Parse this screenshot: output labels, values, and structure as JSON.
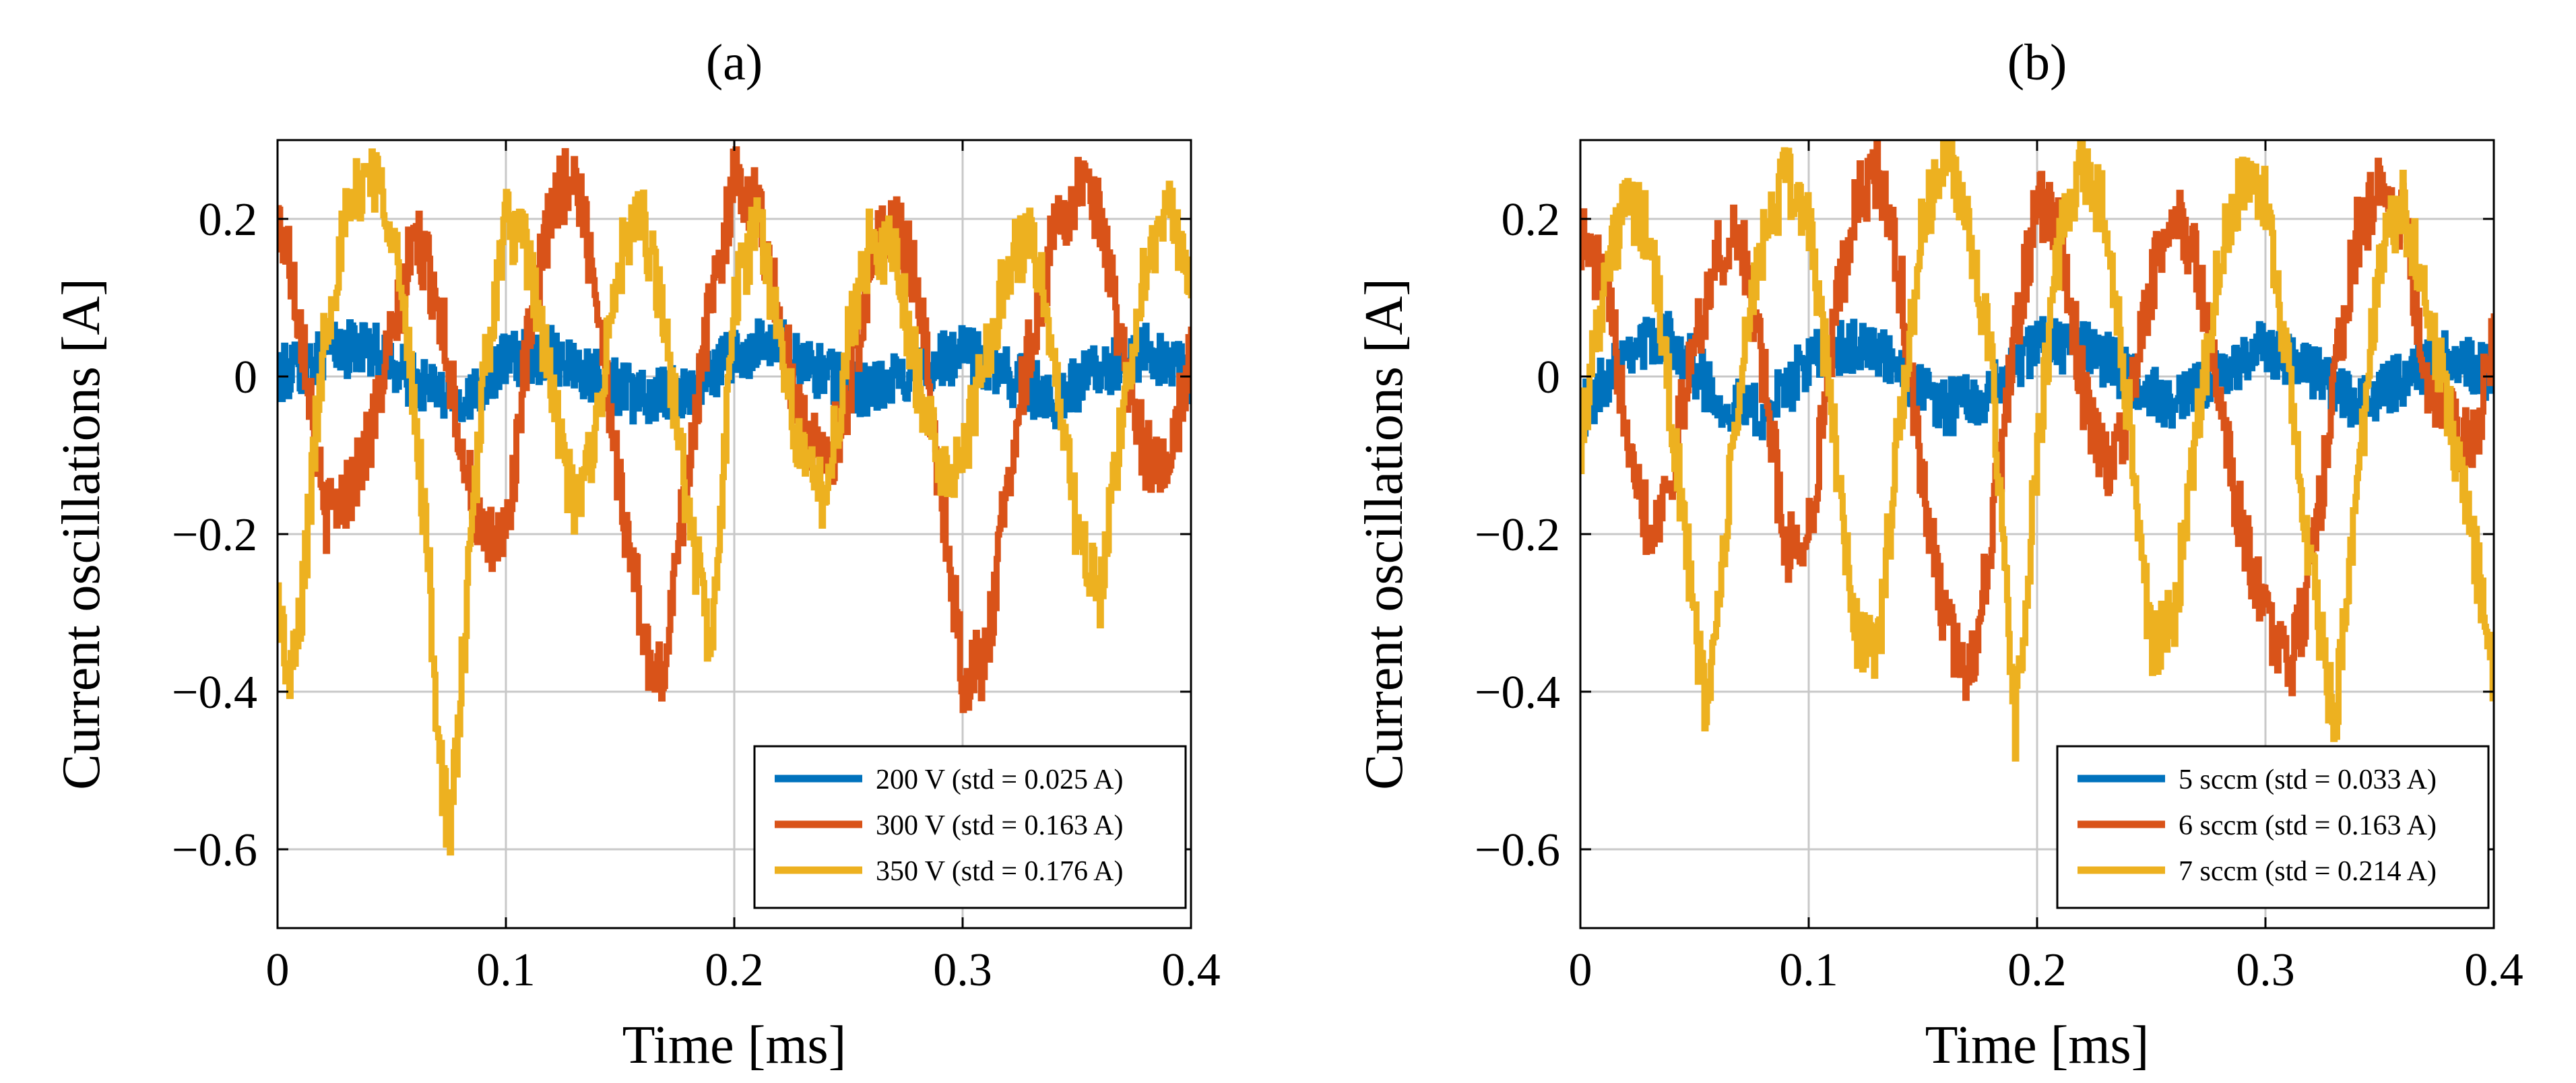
{
  "chart_data": [
    {
      "type": "line",
      "title": "(a)",
      "xlabel": "Time [ms]",
      "ylabel": "Current oscillations [A]",
      "xlim": [
        0,
        0.4
      ],
      "ylim": [
        -0.7,
        0.3
      ],
      "xticks": [
        0,
        0.1,
        0.2,
        0.3,
        0.4
      ],
      "xtick_labels": [
        "0",
        "0.1",
        "0.2",
        "0.3",
        "0.4"
      ],
      "yticks": [
        0.2,
        0,
        -0.2,
        -0.4,
        -0.6
      ],
      "ytick_labels": [
        "0.2",
        "0",
        "−0.2",
        "−0.4",
        "−0.6"
      ],
      "grid": true,
      "legend_position": "bottom-right",
      "series": [
        {
          "name": "200 V (std = 0.025 A)",
          "color": "#0072BD",
          "x": [
            0,
            0.02,
            0.04,
            0.06,
            0.08,
            0.1,
            0.12,
            0.14,
            0.16,
            0.18,
            0.2,
            0.22,
            0.24,
            0.26,
            0.28,
            0.3,
            0.32,
            0.34,
            0.36,
            0.38,
            0.4
          ],
          "y": [
            0.0,
            0.03,
            0.04,
            -0.01,
            -0.03,
            0.02,
            0.03,
            0.0,
            -0.03,
            -0.02,
            0.03,
            0.04,
            0.0,
            -0.02,
            0.01,
            0.03,
            0.0,
            -0.03,
            0.01,
            0.03,
            0.0
          ]
        },
        {
          "name": "300 V (std = 0.163 A)",
          "color": "#D95319",
          "x": [
            0,
            0.005,
            0.012,
            0.02,
            0.03,
            0.04,
            0.05,
            0.06,
            0.07,
            0.08,
            0.09,
            0.1,
            0.11,
            0.12,
            0.13,
            0.14,
            0.15,
            0.16,
            0.165,
            0.17,
            0.18,
            0.19,
            0.2,
            0.21,
            0.22,
            0.23,
            0.24,
            0.25,
            0.26,
            0.27,
            0.28,
            0.29,
            0.3,
            0.31,
            0.32,
            0.33,
            0.34,
            0.35,
            0.36,
            0.37,
            0.38,
            0.39,
            0.4
          ],
          "y": [
            0.2,
            0.15,
            0.03,
            -0.18,
            -0.15,
            -0.08,
            0.05,
            0.18,
            0.1,
            -0.08,
            -0.22,
            -0.2,
            0.05,
            0.22,
            0.26,
            0.1,
            -0.15,
            -0.32,
            -0.4,
            -0.35,
            -0.1,
            0.1,
            0.25,
            0.22,
            0.06,
            -0.06,
            -0.12,
            -0.02,
            0.15,
            0.2,
            0.12,
            -0.14,
            -0.38,
            -0.36,
            -0.12,
            0.05,
            0.18,
            0.24,
            0.2,
            0.02,
            -0.1,
            -0.13,
            0.05
          ]
        },
        {
          "name": "350 V (std = 0.176 A)",
          "color": "#EDB120",
          "x": [
            0,
            0.005,
            0.01,
            0.02,
            0.03,
            0.04,
            0.05,
            0.06,
            0.065,
            0.07,
            0.075,
            0.08,
            0.09,
            0.1,
            0.11,
            0.12,
            0.13,
            0.14,
            0.15,
            0.16,
            0.17,
            0.18,
            0.19,
            0.2,
            0.21,
            0.22,
            0.23,
            0.24,
            0.25,
            0.26,
            0.27,
            0.28,
            0.29,
            0.3,
            0.31,
            0.32,
            0.33,
            0.34,
            0.35,
            0.36,
            0.37,
            0.38,
            0.39,
            0.4
          ],
          "y": [
            -0.28,
            -0.4,
            -0.3,
            0.05,
            0.2,
            0.27,
            0.2,
            -0.05,
            -0.2,
            -0.45,
            -0.6,
            -0.4,
            0.0,
            0.2,
            0.15,
            -0.02,
            -0.18,
            -0.05,
            0.15,
            0.2,
            0.05,
            -0.18,
            -0.35,
            0.1,
            0.2,
            0.05,
            -0.12,
            -0.15,
            0.05,
            0.18,
            0.15,
            0.0,
            -0.12,
            -0.1,
            0.02,
            0.15,
            0.18,
            0.02,
            -0.2,
            -0.28,
            -0.05,
            0.15,
            0.22,
            0.1
          ]
        }
      ]
    },
    {
      "type": "line",
      "title": "(b)",
      "xlabel": "Time [ms]",
      "ylabel": "Current oscillations [A]",
      "xlim": [
        0,
        0.4
      ],
      "ylim": [
        -0.7,
        0.3
      ],
      "xticks": [
        0,
        0.1,
        0.2,
        0.3,
        0.4
      ],
      "xtick_labels": [
        "0",
        "0.1",
        "0.2",
        "0.3",
        "0.4"
      ],
      "yticks": [
        0.2,
        0,
        -0.2,
        -0.4,
        -0.6
      ],
      "ytick_labels": [
        "0.2",
        "0",
        "−0.2",
        "−0.4",
        "−0.6"
      ],
      "grid": true,
      "legend_position": "bottom-right",
      "series": [
        {
          "name": "5 sccm (std = 0.033 A)",
          "color": "#0072BD",
          "x": [
            0,
            0.02,
            0.04,
            0.06,
            0.08,
            0.1,
            0.12,
            0.14,
            0.16,
            0.18,
            0.2,
            0.22,
            0.24,
            0.26,
            0.28,
            0.3,
            0.32,
            0.34,
            0.36,
            0.38,
            0.4
          ],
          "y": [
            -0.05,
            0.04,
            0.05,
            -0.03,
            -0.05,
            0.02,
            0.04,
            0.01,
            -0.04,
            -0.02,
            0.04,
            0.04,
            0.0,
            -0.04,
            0.0,
            0.04,
            0.01,
            -0.04,
            0.0,
            0.03,
            0.0
          ]
        },
        {
          "name": "6 sccm (std = 0.163 A)",
          "color": "#D95319",
          "x": [
            0,
            0.01,
            0.02,
            0.03,
            0.04,
            0.05,
            0.06,
            0.07,
            0.08,
            0.09,
            0.1,
            0.11,
            0.12,
            0.13,
            0.14,
            0.15,
            0.16,
            0.17,
            0.18,
            0.19,
            0.2,
            0.21,
            0.22,
            0.23,
            0.24,
            0.25,
            0.26,
            0.27,
            0.28,
            0.29,
            0.3,
            0.31,
            0.32,
            0.33,
            0.34,
            0.35,
            0.36,
            0.37,
            0.38,
            0.39,
            0.4
          ],
          "y": [
            0.18,
            0.12,
            -0.05,
            -0.2,
            -0.12,
            0.05,
            0.15,
            0.18,
            0.0,
            -0.22,
            -0.2,
            0.05,
            0.22,
            0.26,
            0.12,
            -0.15,
            -0.32,
            -0.38,
            -0.2,
            0.05,
            0.22,
            0.18,
            -0.02,
            -0.12,
            -0.05,
            0.12,
            0.2,
            0.15,
            -0.05,
            -0.2,
            -0.3,
            -0.38,
            -0.25,
            0.0,
            0.18,
            0.24,
            0.2,
            0.0,
            -0.05,
            -0.1,
            0.05
          ]
        },
        {
          "name": "7 sccm (std = 0.214 A)",
          "color": "#EDB120",
          "x": [
            0,
            0.01,
            0.02,
            0.03,
            0.04,
            0.05,
            0.055,
            0.06,
            0.07,
            0.08,
            0.09,
            0.1,
            0.11,
            0.12,
            0.13,
            0.14,
            0.15,
            0.16,
            0.17,
            0.18,
            0.19,
            0.2,
            0.21,
            0.22,
            0.23,
            0.24,
            0.25,
            0.26,
            0.27,
            0.28,
            0.29,
            0.3,
            0.31,
            0.32,
            0.33,
            0.34,
            0.35,
            0.36,
            0.37,
            0.38,
            0.39,
            0.4
          ],
          "y": [
            -0.08,
            0.12,
            0.22,
            0.18,
            -0.05,
            -0.32,
            -0.42,
            -0.3,
            0.0,
            0.18,
            0.25,
            0.2,
            -0.05,
            -0.32,
            -0.35,
            -0.05,
            0.2,
            0.28,
            0.2,
            0.0,
            -0.45,
            -0.1,
            0.18,
            0.27,
            0.2,
            -0.05,
            -0.35,
            -0.3,
            -0.05,
            0.15,
            0.25,
            0.22,
            0.0,
            -0.25,
            -0.45,
            -0.15,
            0.15,
            0.22,
            0.1,
            -0.05,
            -0.2,
            -0.38
          ]
        }
      ]
    }
  ]
}
